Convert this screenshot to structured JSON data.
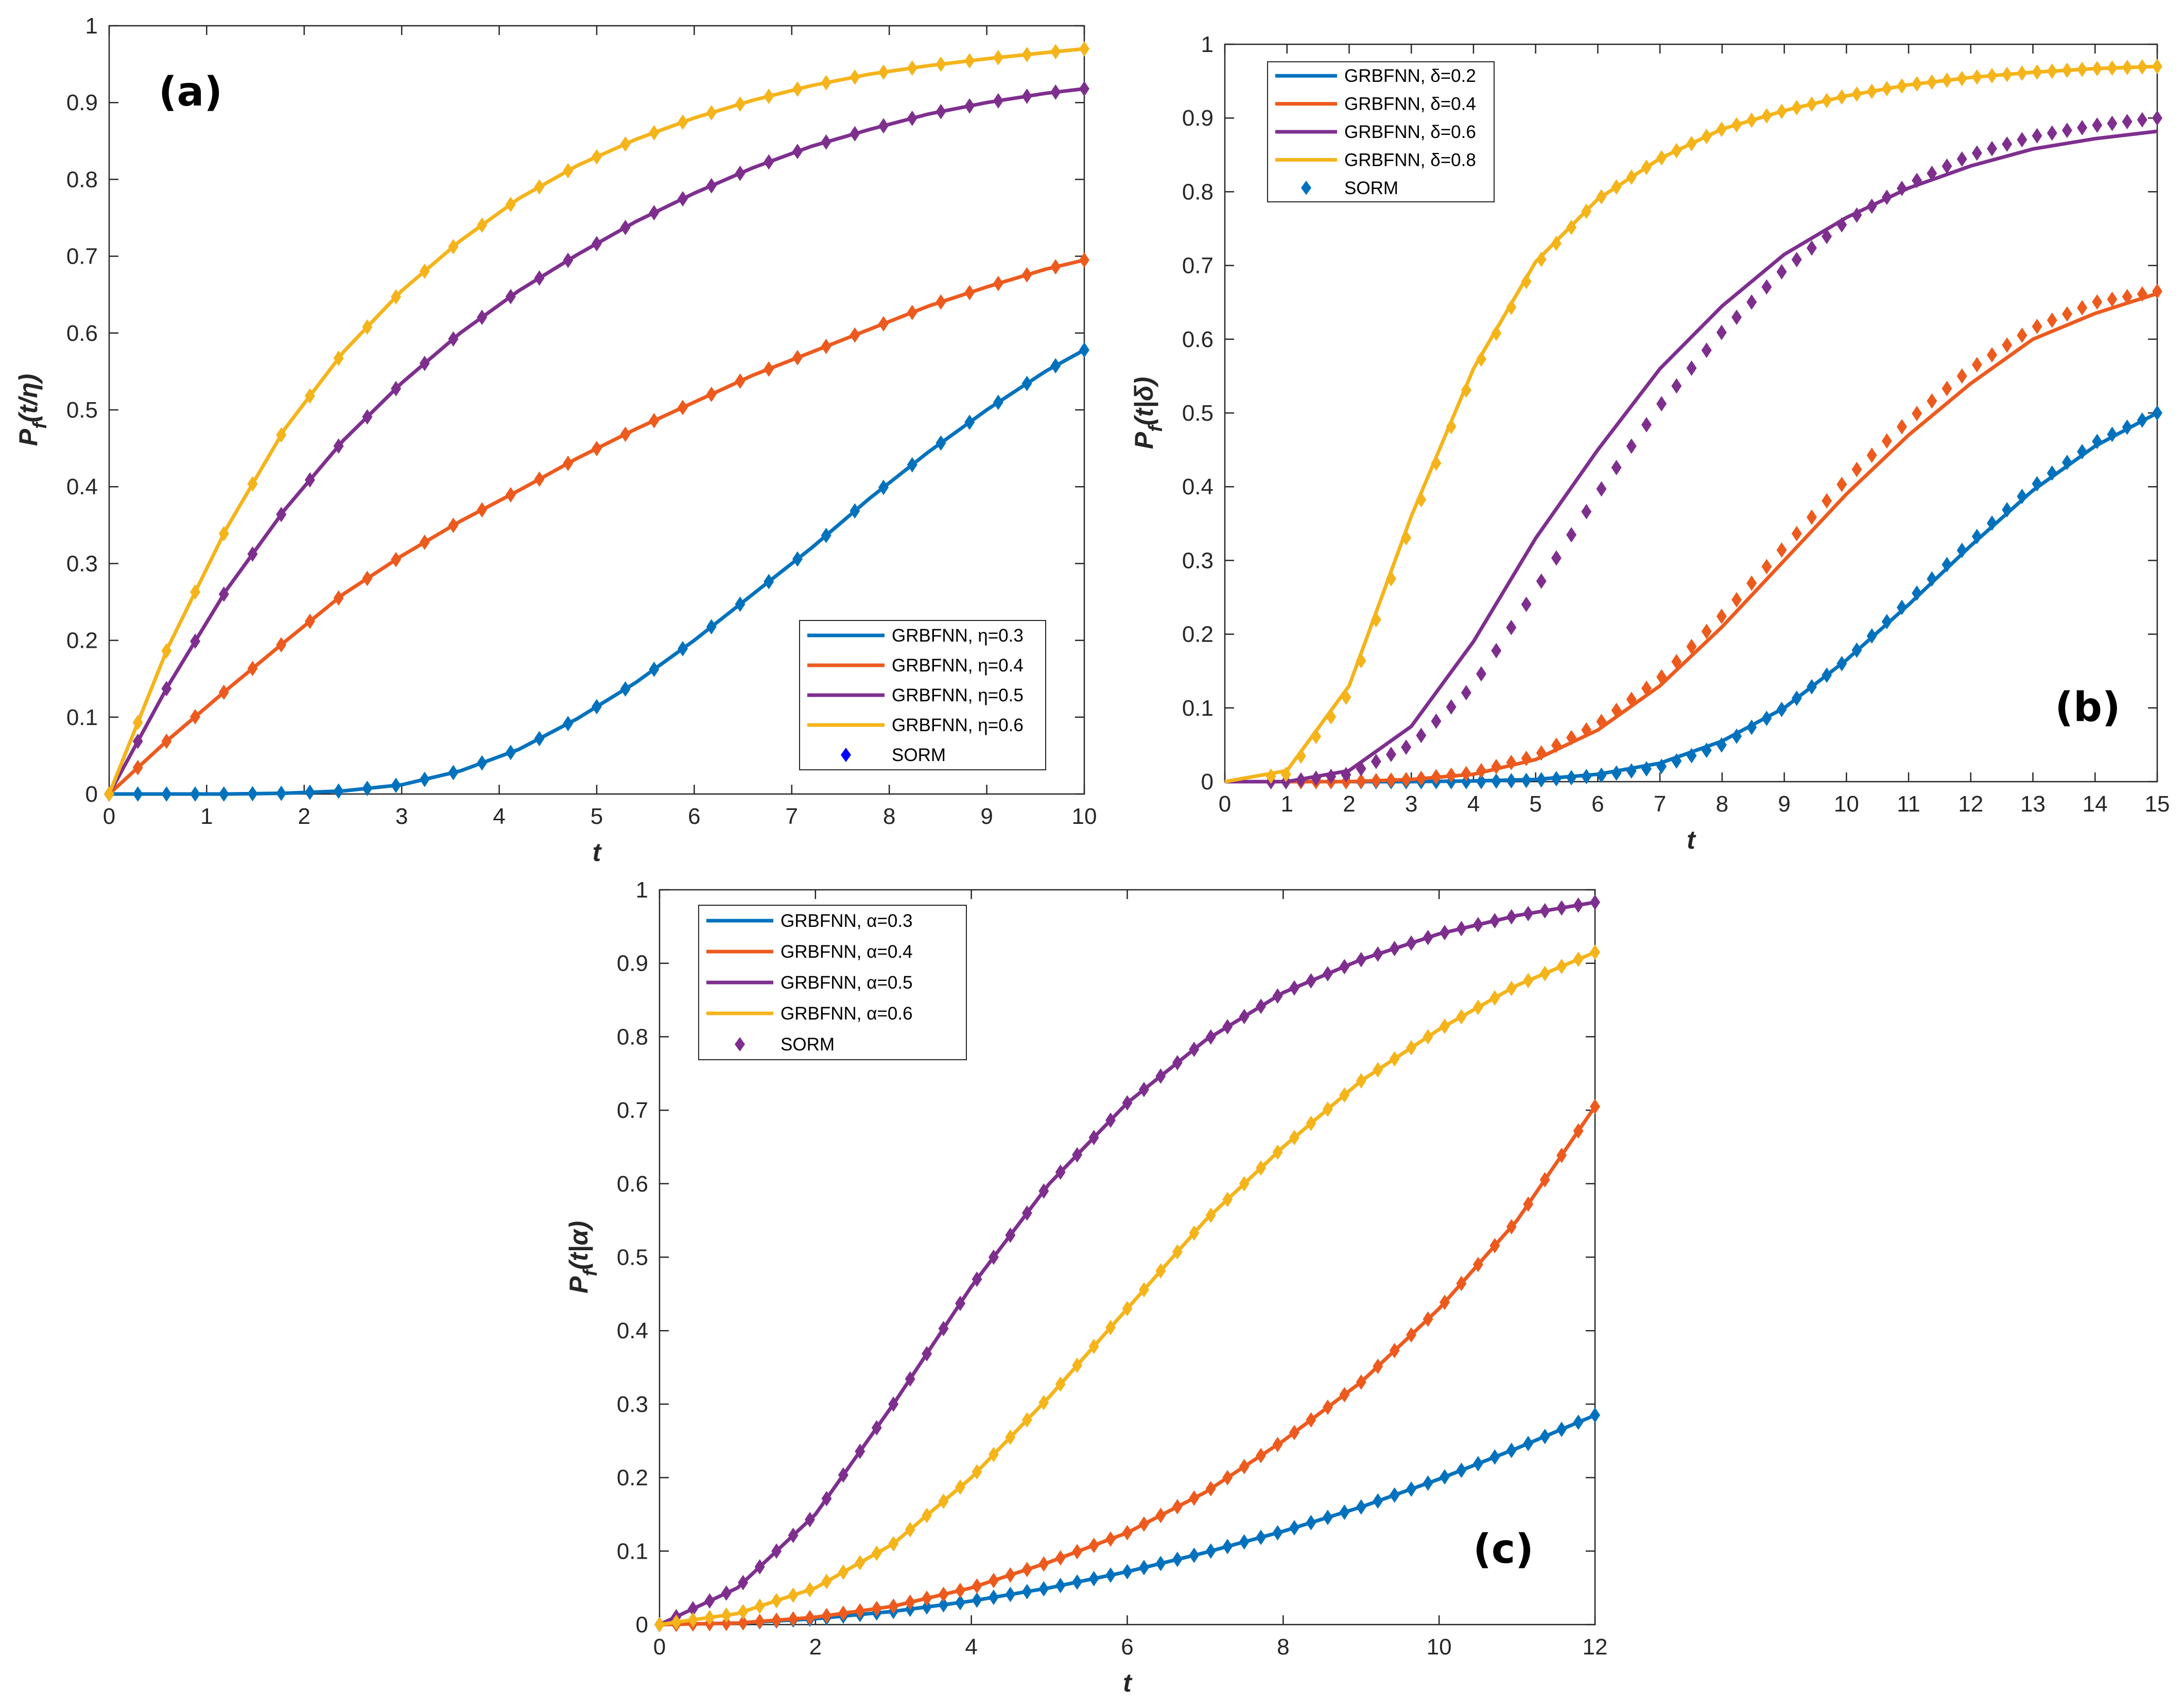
{
  "colors": {
    "blue": "#0072BD",
    "orange": "#ED5A1E",
    "purple": "#7E2F8E",
    "yellow": "#F4B41A",
    "sorm_a": "#0000FF",
    "sorm_b": "#0072BD",
    "sorm_c": "#7E2F8E"
  },
  "chart_data": [
    {
      "panel": "(a)",
      "type": "line",
      "xlabel": "t",
      "ylabel": "P_f(t/η)",
      "ylabel_main": "P",
      "ylabel_sub": "f",
      "ylabel_rest": "(t/η)",
      "xlim": [
        0,
        10
      ],
      "ylim": [
        0,
        1
      ],
      "xticks": [
        "0",
        "1",
        "2",
        "3",
        "4",
        "5",
        "6",
        "7",
        "8",
        "9",
        "10"
      ],
      "yticks": [
        "0",
        "0.1",
        "0.2",
        "0.3",
        "0.4",
        "0.5",
        "0.6",
        "0.7",
        "0.8",
        "0.9",
        "1"
      ],
      "legend_position": "bottom-right",
      "sorm_label": "SORM",
      "x": [
        0,
        0.6,
        1.2,
        1.8,
        2.4,
        3,
        3.6,
        4.2,
        4.8,
        5.4,
        6,
        6.6,
        7.2,
        7.8,
        8.4,
        9,
        9.6,
        10
      ],
      "series": [
        {
          "name": "GRBFNN, η=0.3",
          "color": "blue",
          "values": [
            0,
            0,
            0,
            0.001,
            0.004,
            0.012,
            0.03,
            0.058,
            0.098,
            0.145,
            0.2,
            0.26,
            0.32,
            0.385,
            0.445,
            0.5,
            0.55,
            0.578
          ]
        },
        {
          "name": "GRBFNN, η=0.4",
          "color": "orange",
          "values": [
            0,
            0.07,
            0.135,
            0.198,
            0.26,
            0.31,
            0.355,
            0.395,
            0.437,
            0.475,
            0.51,
            0.545,
            0.575,
            0.605,
            0.635,
            0.66,
            0.683,
            0.695
          ]
        },
        {
          "name": "GRBFNN, η=0.5",
          "color": "purple",
          "values": [
            0,
            0.14,
            0.265,
            0.37,
            0.46,
            0.535,
            0.6,
            0.655,
            0.702,
            0.745,
            0.782,
            0.815,
            0.843,
            0.865,
            0.885,
            0.9,
            0.912,
            0.918
          ]
        },
        {
          "name": "GRBFNN, η=0.6",
          "color": "yellow",
          "values": [
            0,
            0.19,
            0.345,
            0.475,
            0.575,
            0.655,
            0.72,
            0.775,
            0.818,
            0.852,
            0.88,
            0.903,
            0.922,
            0.937,
            0.948,
            0.957,
            0.965,
            0.97
          ]
        }
      ]
    },
    {
      "panel": "(b)",
      "type": "line",
      "xlabel": "t",
      "ylabel": "P_f(t|δ)",
      "ylabel_main": "P",
      "ylabel_sub": "f",
      "ylabel_rest": "(t|δ)",
      "xlim": [
        0,
        15
      ],
      "ylim": [
        0,
        1
      ],
      "xticks": [
        "0",
        "1",
        "2",
        "3",
        "4",
        "5",
        "6",
        "7",
        "8",
        "9",
        "10",
        "11",
        "12",
        "13",
        "14",
        "15"
      ],
      "yticks": [
        "0",
        "0.1",
        "0.2",
        "0.3",
        "0.4",
        "0.5",
        "0.6",
        "0.7",
        "0.8",
        "0.9",
        "1"
      ],
      "legend_position": "top-left",
      "sorm_label": "SORM",
      "x": [
        0,
        1,
        2,
        3,
        4,
        5,
        6,
        7,
        8,
        9,
        10,
        11,
        12,
        13,
        14,
        15
      ],
      "series": [
        {
          "name": "GRBFNN, δ=0.2",
          "color": "blue",
          "values": [
            0,
            0,
            0,
            0,
            0.001,
            0.003,
            0.01,
            0.025,
            0.055,
            0.1,
            0.165,
            0.24,
            0.32,
            0.395,
            0.455,
            0.5
          ]
        },
        {
          "name": "GRBFNN, δ=0.4",
          "color": "orange",
          "values": [
            0,
            0,
            0,
            0.003,
            0.01,
            0.03,
            0.07,
            0.13,
            0.21,
            0.3,
            0.39,
            0.47,
            0.54,
            0.6,
            0.635,
            0.662
          ]
        },
        {
          "name": "GRBFNN, δ=0.6",
          "color": "purple",
          "values": [
            0,
            0,
            0.015,
            0.075,
            0.19,
            0.33,
            0.45,
            0.56,
            0.645,
            0.715,
            0.765,
            0.805,
            0.835,
            0.858,
            0.872,
            0.882
          ]
        },
        {
          "name": "GRBFNN, δ=0.8",
          "color": "yellow",
          "values": [
            0,
            0.015,
            0.13,
            0.36,
            0.56,
            0.705,
            0.79,
            0.845,
            0.885,
            0.91,
            0.93,
            0.945,
            0.955,
            0.962,
            0.967,
            0.97
          ]
        }
      ],
      "sorm": [
        {
          "color": "blue",
          "values": [
            0,
            0,
            0,
            0,
            0,
            0.002,
            0.008,
            0.02,
            0.05,
            0.1,
            0.165,
            0.245,
            0.325,
            0.4,
            0.46,
            0.5
          ]
        },
        {
          "color": "orange",
          "values": [
            0,
            0,
            0,
            0.003,
            0.012,
            0.035,
            0.078,
            0.14,
            0.225,
            0.318,
            0.41,
            0.49,
            0.56,
            0.615,
            0.65,
            0.665
          ]
        },
        {
          "color": "purple",
          "values": [
            0,
            0,
            0.01,
            0.05,
            0.13,
            0.26,
            0.39,
            0.51,
            0.61,
            0.695,
            0.76,
            0.81,
            0.85,
            0.875,
            0.89,
            0.9
          ]
        },
        {
          "color": "yellow",
          "values": [
            0,
            0.01,
            0.12,
            0.35,
            0.555,
            0.7,
            0.79,
            0.845,
            0.885,
            0.91,
            0.93,
            0.945,
            0.955,
            0.962,
            0.967,
            0.97
          ]
        }
      ]
    },
    {
      "panel": "(c)",
      "type": "line",
      "xlabel": "t",
      "ylabel": "P_f (t|α)",
      "ylabel_main": "P",
      "ylabel_sub": "f",
      "ylabel_rest": "(t|α)",
      "xlim": [
        0,
        12
      ],
      "ylim": [
        0,
        1
      ],
      "xticks": [
        "0",
        "2",
        "4",
        "6",
        "8",
        "10",
        "12"
      ],
      "yticks": [
        "0",
        "0.1",
        "0.2",
        "0.3",
        "0.4",
        "0.5",
        "0.6",
        "0.7",
        "0.8",
        "0.9",
        "1"
      ],
      "legend_position": "top-left",
      "sorm_label": "SORM",
      "x": [
        0,
        1,
        2,
        3,
        4,
        5,
        6,
        7,
        8,
        9,
        10,
        11,
        12
      ],
      "series": [
        {
          "name": "GRBFNN, α=0.3",
          "color": "blue",
          "values": [
            0,
            0.002,
            0.008,
            0.018,
            0.032,
            0.05,
            0.072,
            0.098,
            0.127,
            0.16,
            0.198,
            0.24,
            0.285
          ]
        },
        {
          "name": "GRBFNN, α=0.4",
          "color": "orange",
          "values": [
            0,
            0.002,
            0.01,
            0.025,
            0.05,
            0.085,
            0.125,
            0.18,
            0.25,
            0.33,
            0.43,
            0.55,
            0.705
          ]
        },
        {
          "name": "GRBFNN, α=0.5",
          "color": "purple",
          "values": [
            0,
            0.05,
            0.15,
            0.3,
            0.46,
            0.6,
            0.71,
            0.795,
            0.86,
            0.905,
            0.94,
            0.965,
            0.983
          ]
        },
        {
          "name": "GRBFNN, α=0.6",
          "color": "yellow",
          "values": [
            0,
            0.015,
            0.05,
            0.11,
            0.2,
            0.31,
            0.43,
            0.55,
            0.65,
            0.74,
            0.81,
            0.87,
            0.915
          ]
        }
      ]
    }
  ]
}
